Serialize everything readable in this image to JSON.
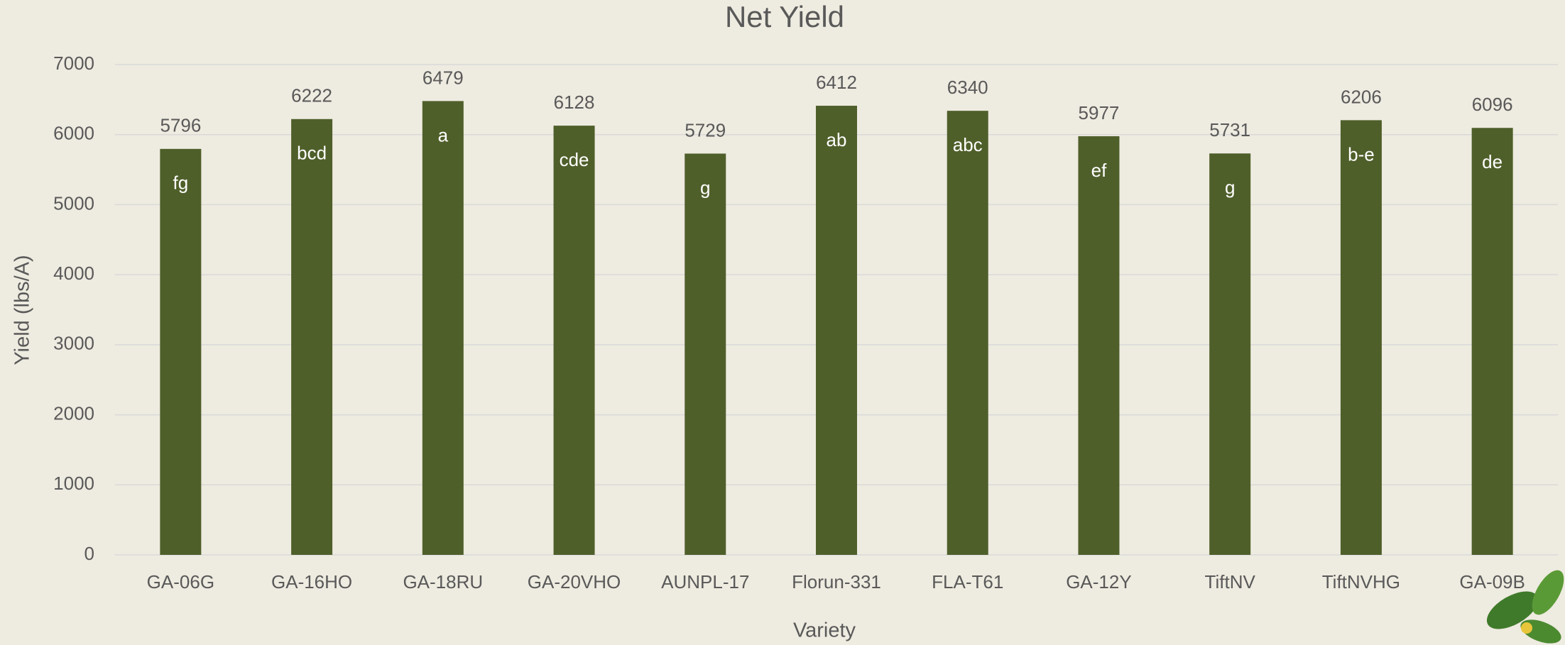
{
  "chart_data": {
    "type": "bar",
    "title": "Net Yield",
    "x_label": "Variety",
    "y_label": "Yield (lbs/A)",
    "categories": [
      "GA-06G",
      "GA-16HO",
      "GA-18RU",
      "GA-20VHO",
      "AUNPL-17",
      "Florun-331",
      "FLA-T61",
      "GA-12Y",
      "TiftNV",
      "TiftNVHG",
      "GA-09B"
    ],
    "values": [
      5796,
      6222,
      6479,
      6128,
      5729,
      6412,
      6340,
      5977,
      5731,
      6206,
      6096
    ],
    "significance_letters": [
      "fg",
      "bcd",
      "a",
      "cde",
      "g",
      "ab",
      "abc",
      "ef",
      "g",
      "b-e",
      "de"
    ],
    "color": "#4f5f2a",
    "ylim": [
      0,
      7000
    ],
    "yticks": [
      0,
      1000,
      2000,
      3000,
      4000,
      5000,
      6000,
      7000
    ],
    "grid": true
  }
}
